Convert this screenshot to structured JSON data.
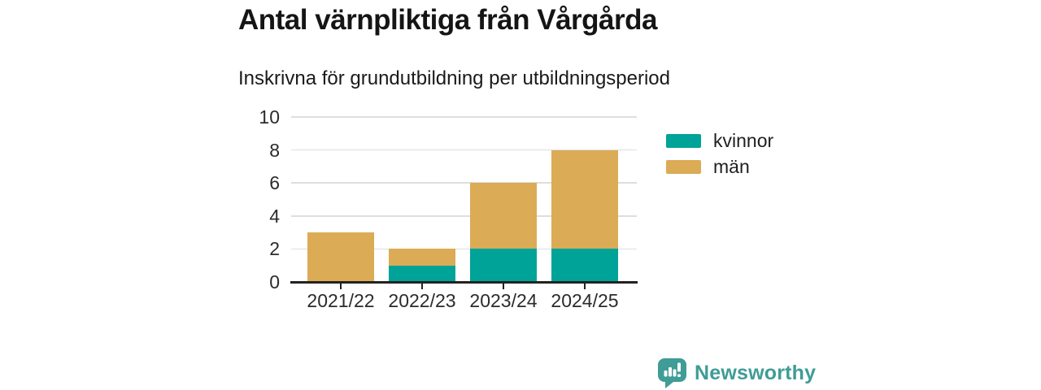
{
  "title": "Antal värnpliktiga från Vårgårda",
  "subtitle": "Inskrivna för grundutbildning per utbildningsperiod",
  "colors": {
    "kvinnor": "#00a398",
    "man": "#dbab55",
    "grid": "#dedede",
    "axis": "#222222",
    "text": "#1a1a1a",
    "logo_teal": "#3f9c96",
    "background": "#ffffff"
  },
  "legend": {
    "items": [
      {
        "label": "kvinnor",
        "color": "#00a398"
      },
      {
        "label": "män",
        "color": "#dbab55"
      }
    ],
    "position": "right"
  },
  "chart_data": {
    "type": "bar",
    "stacked": true,
    "title": "Antal värnpliktiga från Vårgårda",
    "subtitle": "Inskrivna för grundutbildning per utbildningsperiod",
    "categories": [
      "2021/22",
      "2022/23",
      "2023/24",
      "2024/25"
    ],
    "series": [
      {
        "name": "kvinnor",
        "color": "#00a398",
        "values": [
          0,
          1,
          2,
          2
        ]
      },
      {
        "name": "män",
        "color": "#dbab55",
        "values": [
          3,
          1,
          4,
          6
        ]
      }
    ],
    "totals": [
      3,
      2,
      6,
      8
    ],
    "xlabel": "",
    "ylabel": "",
    "ylim": [
      0,
      10
    ],
    "yticks": [
      0,
      2,
      4,
      6,
      8,
      10
    ],
    "grid": true,
    "legend_position": "right"
  },
  "branding": {
    "logo_text": "Newsworthy",
    "logo_icon": "bar-chart-speech-bubble-icon"
  }
}
